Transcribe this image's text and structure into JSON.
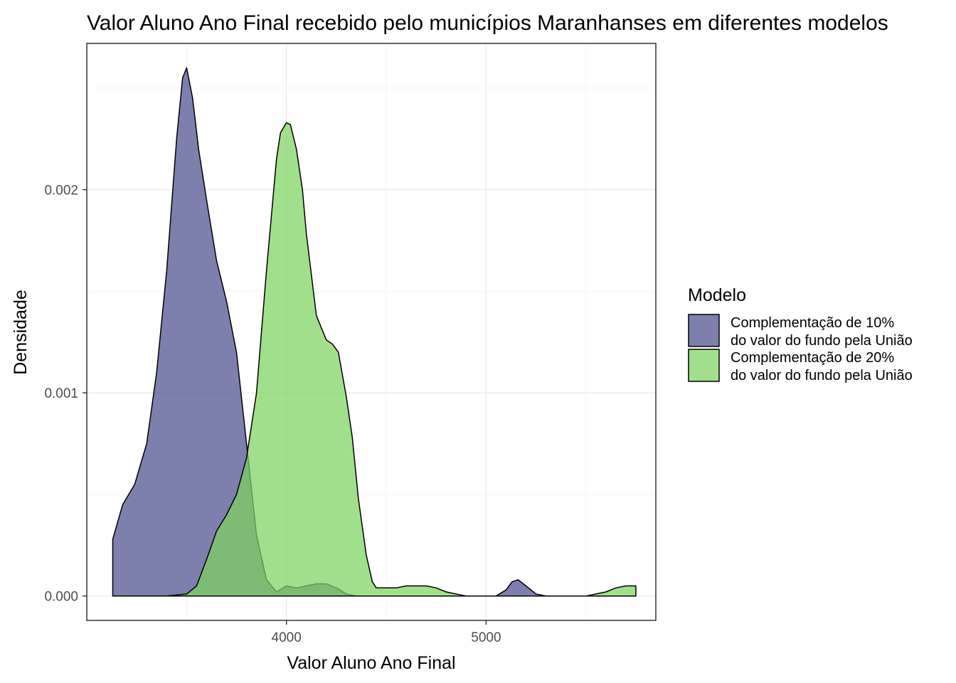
{
  "chart_data": {
    "type": "area",
    "title": "Valor Aluno Ano Final recebido pelo municípios Maranhanses em diferentes modelos",
    "xlabel": "Valor Aluno Ano Final",
    "ylabel": "Densidade",
    "xlim": [
      3000,
      5850
    ],
    "ylim": [
      -0.00012,
      0.00272
    ],
    "x_ticks": [
      4000,
      5000
    ],
    "x_tick_labels": [
      "4000",
      "5000"
    ],
    "y_ticks": [
      0,
      0.001,
      0.002
    ],
    "y_tick_labels": [
      "0.000",
      "0.001",
      "0.002"
    ],
    "grid": true,
    "legend": {
      "title": "Modelo",
      "position": "right"
    },
    "series": [
      {
        "name_lines": [
          "Complementação de 10%",
          "do valor do fundo pela União"
        ],
        "color": "#4B4F8E",
        "opacity": 0.72,
        "x": [
          3130,
          3180,
          3240,
          3300,
          3350,
          3400,
          3450,
          3480,
          3500,
          3530,
          3560,
          3600,
          3650,
          3700,
          3750,
          3800,
          3850,
          3900,
          3950,
          4000,
          4050,
          4100,
          4150,
          4200,
          4250,
          4300,
          4350,
          4400,
          4500,
          4700,
          4900,
          5050,
          5100,
          5130,
          5160,
          5200,
          5250,
          5300,
          5400,
          5500
        ],
        "y": [
          0.00028,
          0.00045,
          0.00055,
          0.00075,
          0.0011,
          0.0016,
          0.00225,
          0.00255,
          0.0026,
          0.00245,
          0.0022,
          0.00195,
          0.00165,
          0.00145,
          0.0012,
          0.00075,
          0.0003,
          8e-05,
          2e-05,
          5e-05,
          4e-05,
          5e-05,
          6e-05,
          6e-05,
          4e-05,
          1e-05,
          0.0,
          0.0,
          0.0,
          0.0,
          0.0,
          0.0,
          3e-05,
          7e-05,
          8e-05,
          5e-05,
          1e-05,
          0.0,
          0.0,
          0.0
        ]
      },
      {
        "name_lines": [
          "Complementação de 20%",
          "do valor do fundo pela União"
        ],
        "color": "#7ED35F",
        "opacity": 0.72,
        "x": [
          3130,
          3400,
          3500,
          3550,
          3600,
          3650,
          3700,
          3750,
          3800,
          3850,
          3900,
          3950,
          3970,
          4000,
          4020,
          4050,
          4080,
          4100,
          4150,
          4200,
          4230,
          4260,
          4300,
          4330,
          4360,
          4400,
          4430,
          4450,
          4480,
          4500,
          4550,
          4600,
          4650,
          4700,
          4750,
          4800,
          4850,
          4900,
          4950,
          5000,
          5050,
          5100,
          5150,
          5200,
          5300,
          5400,
          5500,
          5550,
          5600,
          5650,
          5700,
          5750
        ],
        "y": [
          0.0,
          0.0,
          1e-05,
          5e-05,
          0.00018,
          0.00032,
          0.0004,
          0.0005,
          0.00068,
          0.001,
          0.0016,
          0.00215,
          0.00228,
          0.00233,
          0.00232,
          0.0022,
          0.002,
          0.00178,
          0.00138,
          0.00126,
          0.00124,
          0.0012,
          0.00098,
          0.00078,
          0.00048,
          0.0002,
          7e-05,
          4e-05,
          4e-05,
          4e-05,
          4e-05,
          5e-05,
          5e-05,
          5e-05,
          4e-05,
          2e-05,
          1e-05,
          0.0,
          0.0,
          0.0,
          0.0,
          0.0,
          0.0,
          0.0,
          0.0,
          0.0,
          0.0,
          1e-05,
          2e-05,
          4e-05,
          5e-05,
          5e-05
        ]
      }
    ]
  },
  "colors": {
    "outline": "#000000",
    "grid_major": "#ebebeb",
    "grid_minor": "#f3f3f3",
    "panel_border": "#333333",
    "tick_text": "#4d4d4d"
  }
}
